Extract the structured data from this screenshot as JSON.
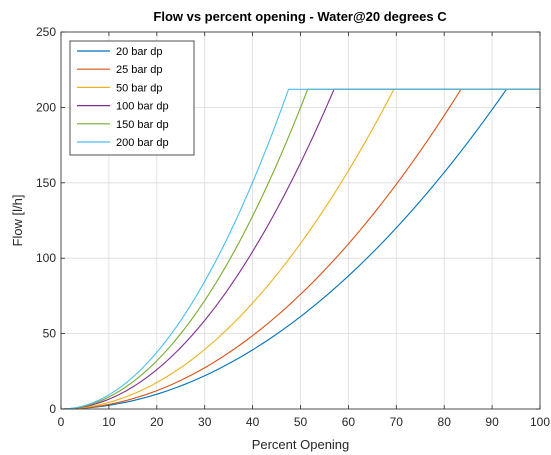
{
  "chart_data": {
    "type": "line",
    "title": "Flow vs percent opening - Water@20 degrees C",
    "xlabel": "Percent Opening",
    "ylabel": "Flow [l/h]",
    "xlim": [
      0,
      100
    ],
    "ylim": [
      0,
      250
    ],
    "xticks": [
      "0",
      "10",
      "20",
      "30",
      "40",
      "50",
      "60",
      "70",
      "80",
      "90",
      "100"
    ],
    "yticks": [
      "0",
      "50",
      "100",
      "150",
      "200",
      "250"
    ],
    "grid": true,
    "legend_position": "top-left",
    "series": [
      {
        "name": "20 bar dp",
        "color": "#0072BD",
        "max_flow": 212,
        "saturation_x": 93,
        "x": [
          0,
          5,
          10,
          20,
          30,
          40,
          50,
          60,
          70,
          80,
          90,
          93,
          100
        ],
        "y": [
          0,
          0.6,
          2.5,
          9.8,
          22,
          39,
          61,
          88,
          120,
          157,
          198,
          212,
          212
        ]
      },
      {
        "name": "25 bar dp",
        "color": "#D95319",
        "max_flow": 212,
        "saturation_x": 83.5,
        "x": [
          0,
          5,
          10,
          20,
          30,
          40,
          50,
          60,
          70,
          80,
          83.5,
          100
        ],
        "y": [
          0,
          0.8,
          3,
          12.2,
          27,
          49,
          76,
          110,
          149,
          195,
          212,
          212
        ]
      },
      {
        "name": "50 bar dp",
        "color": "#EDB120",
        "max_flow": 212,
        "saturation_x": 69.5,
        "x": [
          0,
          5,
          10,
          20,
          30,
          40,
          50,
          60,
          69.5,
          100
        ],
        "y": [
          0,
          1.1,
          4.4,
          17.6,
          40,
          70,
          110,
          158,
          212,
          212
        ]
      },
      {
        "name": "100 bar dp",
        "color": "#7E2F8E",
        "max_flow": 212,
        "saturation_x": 57,
        "x": [
          0,
          5,
          10,
          20,
          30,
          40,
          50,
          57,
          100
        ],
        "y": [
          0,
          1.6,
          6.5,
          26,
          59,
          104,
          163,
          212,
          212
        ]
      },
      {
        "name": "150 bar dp",
        "color": "#77AC30",
        "max_flow": 212,
        "saturation_x": 51.5,
        "x": [
          0,
          5,
          10,
          20,
          30,
          40,
          51.5,
          100
        ],
        "y": [
          0,
          2,
          8,
          32,
          72,
          128,
          212,
          212
        ]
      },
      {
        "name": "200 bar dp",
        "color": "#4DBEEE",
        "max_flow": 212,
        "saturation_x": 47.5,
        "x": [
          0,
          5,
          10,
          20,
          30,
          40,
          47.5,
          100
        ],
        "y": [
          0,
          2.35,
          9.4,
          37.6,
          85,
          150,
          212,
          212
        ]
      }
    ]
  }
}
